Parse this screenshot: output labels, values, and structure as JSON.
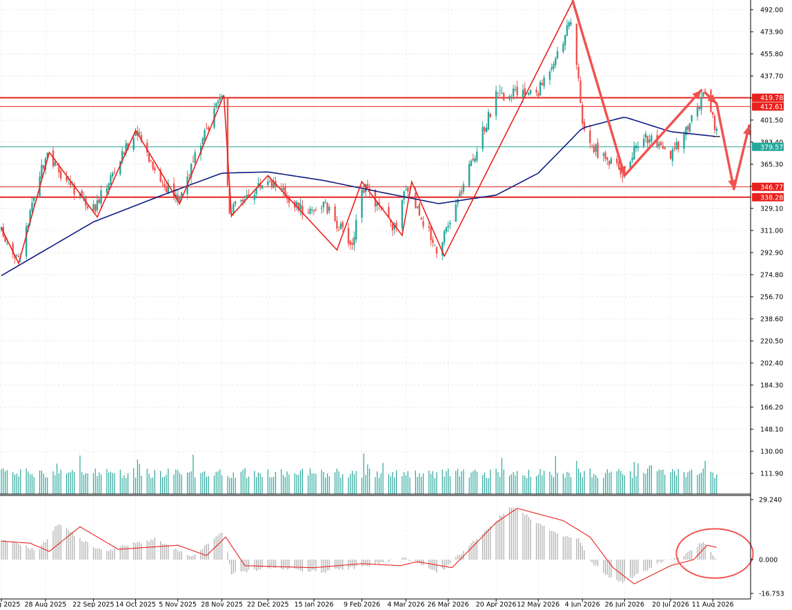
{
  "chart_data": [
    {
      "type": "candlestick",
      "title": "",
      "ylim": [
        266.0,
        500.0
      ],
      "price_ticks": [
        "492.00",
        "473.90",
        "455.80",
        "437.70",
        "419.60",
        "401.50",
        "383.40",
        "365.30",
        "347.20",
        "329.10",
        "311.00",
        "292.90",
        "274.80",
        "256.70",
        "238.60",
        "220.50",
        "202.40",
        "184.30",
        "166.20",
        "148.10",
        "130.00",
        "111.90"
      ],
      "x_tick_labels": [
        "5 Aug 2025",
        "28 Aug 2025",
        "22 Sep 2025",
        "14 Oct 2025",
        "5 Nov 2025",
        "28 Nov 2025",
        "22 Dec 2025",
        "15 Jan 2026",
        "9 Feb 2026",
        "4 Mar 2026",
        "26 Mar 2026",
        "20 Apr 2026",
        "12 May 2026",
        "4 Jun 2026",
        "26 Jun 2026",
        "20 Jul 2026",
        "11 Aug 2026"
      ],
      "candles": {
        "date_range": [
          "2025-08-05",
          "2026-08-13"
        ],
        "close_path": [
          {
            "date": "2025-08-05",
            "close": 310
          },
          {
            "date": "2025-08-14",
            "close": 287
          },
          {
            "date": "2025-08-28",
            "close": 372
          },
          {
            "date": "2025-09-22",
            "close": 328
          },
          {
            "date": "2025-10-14",
            "close": 393
          },
          {
            "date": "2025-10-28",
            "close": 350
          },
          {
            "date": "2025-11-05",
            "close": 337
          },
          {
            "date": "2025-11-28",
            "close": 422
          },
          {
            "date": "2025-12-02",
            "close": 327
          },
          {
            "date": "2025-12-22",
            "close": 354
          },
          {
            "date": "2026-01-10",
            "close": 326
          },
          {
            "date": "2026-01-20",
            "close": 333
          },
          {
            "date": "2026-02-04",
            "close": 299
          },
          {
            "date": "2026-02-09",
            "close": 348
          },
          {
            "date": "2026-02-27",
            "close": 311
          },
          {
            "date": "2026-03-04",
            "close": 349
          },
          {
            "date": "2026-03-21",
            "close": 293
          },
          {
            "date": "2026-04-20",
            "close": 421
          },
          {
            "date": "2026-05-12",
            "close": 425
          },
          {
            "date": "2026-05-30",
            "close": 485
          },
          {
            "date": "2026-06-04",
            "close": 395
          },
          {
            "date": "2026-06-10",
            "close": 378
          },
          {
            "date": "2026-06-26",
            "close": 358
          },
          {
            "date": "2026-07-05",
            "close": 391
          },
          {
            "date": "2026-07-20",
            "close": 371
          },
          {
            "date": "2026-08-07",
            "close": 423
          },
          {
            "date": "2026-08-13",
            "close": 390
          }
        ]
      },
      "moving_average_path": [
        {
          "date": "2025-08-05",
          "value": 274
        },
        {
          "date": "2025-09-22",
          "value": 318
        },
        {
          "date": "2025-10-28",
          "value": 340
        },
        {
          "date": "2025-11-28",
          "value": 358
        },
        {
          "date": "2025-12-22",
          "value": 359
        },
        {
          "date": "2026-01-20",
          "value": 352
        },
        {
          "date": "2026-02-20",
          "value": 342
        },
        {
          "date": "2026-03-21",
          "value": 333
        },
        {
          "date": "2026-04-20",
          "value": 340
        },
        {
          "date": "2026-05-12",
          "value": 358
        },
        {
          "date": "2026-06-04",
          "value": 395
        },
        {
          "date": "2026-06-26",
          "value": 404
        },
        {
          "date": "2026-07-20",
          "value": 392
        },
        {
          "date": "2026-08-13",
          "value": 388
        }
      ],
      "zigzag": [
        {
          "date": "2025-08-05",
          "price": 313
        },
        {
          "date": "2025-08-14",
          "price": 284
        },
        {
          "date": "2025-08-30",
          "price": 375
        },
        {
          "date": "2025-09-24",
          "price": 322
        },
        {
          "date": "2025-10-14",
          "price": 393
        },
        {
          "date": "2025-11-06",
          "price": 333
        },
        {
          "date": "2025-11-29",
          "price": 422
        },
        {
          "date": "2025-12-03",
          "price": 323
        },
        {
          "date": "2025-12-22",
          "price": 356
        },
        {
          "date": "2026-01-27",
          "price": 295
        },
        {
          "date": "2026-02-09",
          "price": 351
        },
        {
          "date": "2026-03-02",
          "price": 307
        },
        {
          "date": "2026-03-07",
          "price": 351
        },
        {
          "date": "2026-03-24",
          "price": 290
        },
        {
          "date": "2026-05-30",
          "price": 499
        }
      ],
      "forecast_arrows": [
        {
          "from": {
            "date": "2026-05-30",
            "price": 499
          },
          "to": {
            "date": "2026-06-26",
            "price": 356
          }
        },
        {
          "from": {
            "date": "2026-06-26",
            "price": 356
          },
          "to": {
            "date": "2026-08-05",
            "price": 426
          }
        },
        {
          "from": {
            "date": "2026-08-07",
            "price": 424
          },
          "to": {
            "date": "2026-08-13",
            "price": 415
          }
        },
        {
          "from": {
            "date": "2026-08-13",
            "price": 415
          },
          "to": {
            "date": "2026-08-22",
            "price": 345
          }
        },
        {
          "from": {
            "date": "2026-08-22",
            "price": 345
          },
          "to": {
            "date": "2026-08-30",
            "price": 397
          }
        }
      ],
      "horizontal_levels": [
        {
          "value": 419.78,
          "label": "419.78",
          "color": "#e8211d"
        },
        {
          "value": 412.61,
          "label": "412.61",
          "color": "#e8211d"
        },
        {
          "value": 379.57,
          "label": "379.57",
          "color": "#26a69a"
        },
        {
          "value": 346.77,
          "label": "346.77",
          "color": "#e8211d"
        },
        {
          "value": 338.28,
          "label": "338.28",
          "color": "#e8211d"
        }
      ],
      "volume": {
        "ylim": [
          100,
          140
        ],
        "avg": 108,
        "max": 134
      },
      "colors": {
        "bull": "#26a69a",
        "bear": "#ef5350",
        "ma": "#0d1a80",
        "zigzag": "#e8211d",
        "arrow": "#f0524f",
        "volume": "#26a69a"
      }
    },
    {
      "type": "histogram_with_signal",
      "ylim": [
        -16.753,
        29.24
      ],
      "ticks": [
        "29.240",
        "0.000",
        "-16.753"
      ],
      "histogram_path": [
        {
          "date": "2025-08-05",
          "value": 9
        },
        {
          "date": "2025-08-14",
          "value": 8
        },
        {
          "date": "2025-08-24",
          "value": 4
        },
        {
          "date": "2025-09-04",
          "value": 18
        },
        {
          "date": "2025-09-15",
          "value": 10
        },
        {
          "date": "2025-09-27",
          "value": 4
        },
        {
          "date": "2025-10-14",
          "value": 8
        },
        {
          "date": "2025-10-24",
          "value": 10
        },
        {
          "date": "2025-11-12",
          "value": 1
        },
        {
          "date": "2025-11-29",
          "value": 14
        },
        {
          "date": "2025-12-03",
          "value": -7
        },
        {
          "date": "2025-12-22",
          "value": -4
        },
        {
          "date": "2026-01-20",
          "value": -6
        },
        {
          "date": "2026-02-12",
          "value": -3
        },
        {
          "date": "2026-03-04",
          "value": 1
        },
        {
          "date": "2026-03-21",
          "value": -7
        },
        {
          "date": "2026-04-28",
          "value": 26
        },
        {
          "date": "2026-05-22",
          "value": 12
        },
        {
          "date": "2026-06-02",
          "value": 10
        },
        {
          "date": "2026-06-08",
          "value": -1
        },
        {
          "date": "2026-06-20",
          "value": -10
        },
        {
          "date": "2026-06-26",
          "value": -11
        },
        {
          "date": "2026-07-15",
          "value": -1
        },
        {
          "date": "2026-07-26",
          "value": 1
        },
        {
          "date": "2026-08-06",
          "value": 9
        },
        {
          "date": "2026-08-13",
          "value": 0
        }
      ],
      "signal_path": [
        {
          "date": "2025-08-05",
          "value": 9
        },
        {
          "date": "2025-08-20",
          "value": 8
        },
        {
          "date": "2025-08-30",
          "value": 4
        },
        {
          "date": "2025-09-15",
          "value": 16
        },
        {
          "date": "2025-10-05",
          "value": 5
        },
        {
          "date": "2025-11-05",
          "value": 7
        },
        {
          "date": "2025-11-20",
          "value": 2
        },
        {
          "date": "2025-11-30",
          "value": 11
        },
        {
          "date": "2025-12-10",
          "value": -3
        },
        {
          "date": "2026-01-15",
          "value": -4
        },
        {
          "date": "2026-02-09",
          "value": -2
        },
        {
          "date": "2026-03-01",
          "value": -3
        },
        {
          "date": "2026-03-10",
          "value": -1
        },
        {
          "date": "2026-03-28",
          "value": -4
        },
        {
          "date": "2026-04-20",
          "value": 18
        },
        {
          "date": "2026-05-01",
          "value": 25
        },
        {
          "date": "2026-05-25",
          "value": 19
        },
        {
          "date": "2026-06-08",
          "value": 11
        },
        {
          "date": "2026-06-20",
          "value": -4
        },
        {
          "date": "2026-07-01",
          "value": -12
        },
        {
          "date": "2026-07-20",
          "value": -3
        },
        {
          "date": "2026-08-01",
          "value": 0
        },
        {
          "date": "2026-08-08",
          "value": 7
        },
        {
          "date": "2026-08-13",
          "value": 6
        }
      ],
      "highlight_ellipse": {
        "center_date": "2026-08-12",
        "center_value": 3,
        "rx_days": 20,
        "ry_value": 12
      },
      "colors": {
        "histogram": "#b0b0b0",
        "signal": "#e8211d",
        "ellipse": "#f0524f"
      }
    }
  ]
}
